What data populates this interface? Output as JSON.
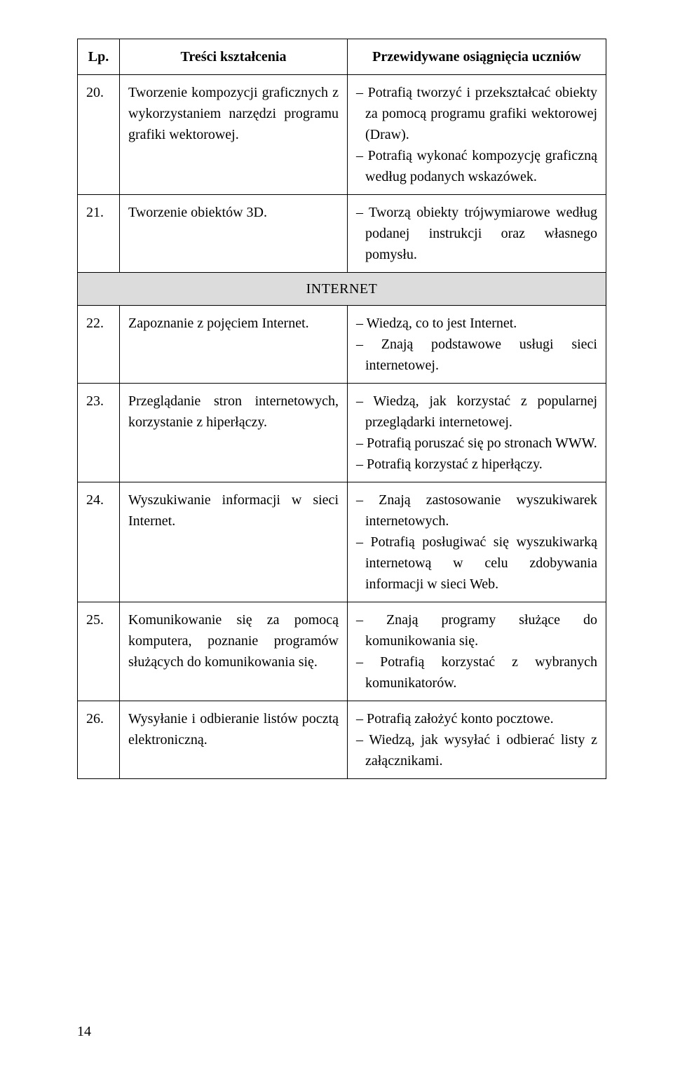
{
  "header": {
    "col1": "Lp.",
    "col2": "Treści kształcenia",
    "col3": "Przewidywane osiągnięcia uczniów"
  },
  "section_label": "INTERNET",
  "rows": [
    {
      "lp": "20.",
      "content": "Tworzenie kompozycji graficznych z wykorzystaniem narzędzi programu grafiki wektorowej.",
      "outcomes": [
        "– Potrafią tworzyć i przekształcać obiekty za pomocą programu grafiki wektorowej (Draw).",
        "– Potrafią wykonać kompozycję graficzną według podanych wskazówek."
      ]
    },
    {
      "lp": "21.",
      "content": "Tworzenie obiektów 3D.",
      "outcomes": [
        "– Tworzą obiekty trójwymiarowe według podanej instrukcji oraz własnego pomysłu."
      ]
    },
    {
      "lp": "22.",
      "content": "Zapoznanie z pojęciem Internet.",
      "outcomes": [
        "– Wiedzą, co to jest Internet.",
        "– Znają podstawowe usługi sieci internetowej."
      ]
    },
    {
      "lp": "23.",
      "content": "Przeglądanie stron internetowych, korzystanie z hiperłączy.",
      "outcomes": [
        "– Wiedzą, jak korzystać z popularnej przeglądarki internetowej.",
        "– Potrafią poruszać się po stronach WWW.",
        "– Potrafią korzystać z hiperłączy."
      ]
    },
    {
      "lp": "24.",
      "content": "Wyszukiwanie informacji w sieci Internet.",
      "outcomes": [
        "– Znają zastosowanie wyszukiwarek internetowych.",
        "– Potrafią posługiwać się wyszukiwarką internetową  w celu zdobywania informacji w sieci Web."
      ]
    },
    {
      "lp": "25.",
      "content": "Komunikowanie się za pomocą komputera, poznanie programów służących do komunikowania się.",
      "outcomes": [
        "– Znają programy służące do komunikowania się.",
        "– Potrafią korzystać z wybranych komunikatorów."
      ]
    },
    {
      "lp": "26.",
      "content": "Wysyłanie i odbieranie listów pocztą elektroniczną.",
      "outcomes": [
        "– Potrafią założyć konto pocztowe.",
        "– Wiedzą, jak wysyłać i odbierać listy z załącznikami."
      ]
    }
  ],
  "page_number": "14"
}
